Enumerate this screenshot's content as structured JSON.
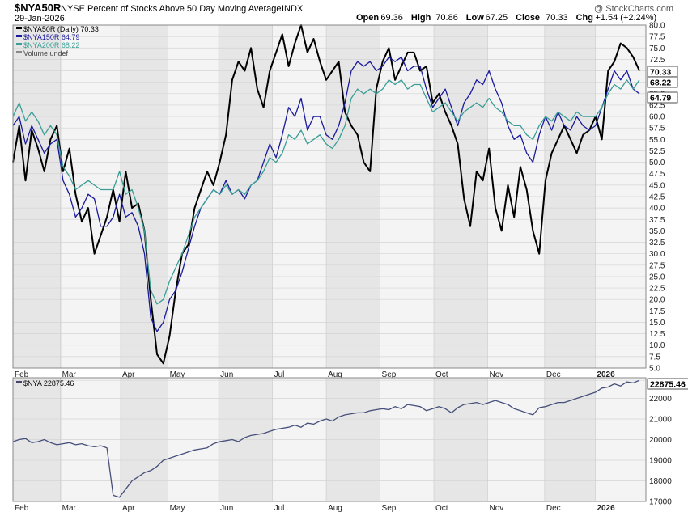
{
  "header": {
    "symbol": "$NYA50R",
    "description": "NYSE Percent of Stocks Above 50 Day Moving Average",
    "exchange": "INDX",
    "date": "29-Jan-2026",
    "watermark": "@ StockCharts.com",
    "ohlc": [
      {
        "label": "Open",
        "value": "69.36"
      },
      {
        "label": "High",
        "value": "70.86"
      },
      {
        "label": "Low",
        "value": "67.25"
      },
      {
        "label": "Close",
        "value": "70.33"
      },
      {
        "label": "Chg",
        "value": "+1.54 (+2.24%)"
      }
    ],
    "chg_arrow": "up-arrow-icon"
  },
  "legend_top": [
    {
      "label": "$NYA50R (Daily) 70.33",
      "color": "#000000"
    },
    {
      "label": "$NYA150R 64.79",
      "color": "#1a1a9c"
    },
    {
      "label": "$NYA200R 68.22",
      "color": "#3a9e96"
    },
    {
      "label": "Volume undef",
      "color": "#888888"
    }
  ],
  "legend_bottom": [
    {
      "label": "$NYA 22875.46",
      "color": "#444466"
    }
  ],
  "colors": {
    "nya50r": "#000000",
    "nya150r": "#1a1a9c",
    "nya200r": "#3a9e96",
    "nya": "#46507a",
    "shade": "#e6e6e6",
    "plot_bg": "#f4f4f4"
  },
  "chart_data": [
    {
      "type": "line",
      "y_ticks": [
        "80.0",
        "77.5",
        "75.0",
        "72.5",
        "70.0",
        "67.5",
        "65.0",
        "62.5",
        "60.0",
        "57.5",
        "55.0",
        "52.5",
        "50.0",
        "47.5",
        "45.0",
        "42.5",
        "40.0",
        "37.5",
        "35.0",
        "32.5",
        "30.0",
        "27.5",
        "25.0",
        "22.5",
        "20.0",
        "17.5",
        "15.0",
        "12.5",
        "10.0",
        "7.5",
        "5.0"
      ],
      "ylim": [
        5.0,
        80.0
      ],
      "x_labels": [
        "Feb",
        "Mar",
        "Apr",
        "May",
        "Jun",
        "Jul",
        "Aug",
        "Sep",
        "Oct",
        "Nov",
        "Dec",
        "2026"
      ],
      "last_value_tags": [
        {
          "label": "70.33",
          "series": "$NYA50R"
        },
        {
          "label": "68.22",
          "series": "$NYA200R"
        },
        {
          "label": "64.79",
          "series": "$NYA150R"
        }
      ],
      "series": [
        {
          "name": "$NYA50R",
          "values": [
            50,
            58,
            46,
            57,
            53,
            48,
            55,
            58,
            48,
            53,
            43,
            37,
            40,
            30,
            34,
            38,
            44,
            37,
            48,
            40,
            41,
            35,
            20,
            8,
            6,
            12,
            22,
            30,
            32,
            40,
            44,
            48,
            45,
            50,
            56,
            68,
            72,
            70,
            75,
            66,
            62,
            70,
            74,
            78,
            71,
            76,
            80,
            74,
            77,
            72,
            68,
            70,
            72,
            61,
            58,
            56,
            50,
            48,
            66,
            72,
            75,
            68,
            71,
            74,
            74,
            70,
            71,
            63,
            65,
            61,
            58,
            54,
            42,
            36,
            48,
            46,
            53,
            40,
            35,
            45,
            38,
            49,
            44,
            35,
            30,
            46,
            52,
            55,
            58,
            55,
            52,
            56,
            57,
            60,
            55,
            70,
            72,
            76,
            75,
            73,
            70
          ]
        },
        {
          "name": "$NYA150R",
          "values": [
            58,
            60,
            54,
            58,
            55,
            52,
            54,
            55,
            46,
            43,
            38,
            40,
            43,
            42,
            36,
            36,
            38,
            43,
            38,
            39,
            36,
            30,
            16,
            13,
            15,
            20,
            22,
            26,
            31,
            36,
            40,
            42,
            44,
            43,
            46,
            43,
            44,
            42,
            45,
            46,
            50,
            54,
            51,
            56,
            62,
            60,
            64,
            57,
            60,
            60,
            56,
            55,
            58,
            63,
            70,
            72,
            71,
            72,
            70,
            71,
            73,
            72,
            73,
            70,
            71,
            71,
            66,
            62,
            64,
            66,
            62,
            58,
            63,
            65,
            68,
            67,
            70,
            66,
            63,
            58,
            55,
            56,
            52,
            50,
            56,
            60,
            57,
            61,
            58,
            57,
            60,
            58,
            57,
            58,
            62,
            66,
            70,
            68,
            70,
            66,
            65
          ]
        },
        {
          "name": "$NYA200R",
          "values": [
            60,
            63,
            59,
            61,
            59,
            56,
            58,
            56,
            49,
            47,
            44,
            45,
            46,
            45,
            44,
            44,
            44,
            48,
            43,
            44,
            40,
            35,
            22,
            19,
            20,
            24,
            27,
            30,
            34,
            38,
            40,
            42,
            44,
            43,
            45,
            43,
            44,
            43,
            45,
            46,
            48,
            51,
            50,
            52,
            56,
            55,
            57,
            54,
            55,
            56,
            54,
            53,
            55,
            58,
            64,
            66,
            65,
            66,
            65,
            66,
            68,
            67,
            68,
            66,
            67,
            67,
            64,
            61,
            62,
            63,
            61,
            59,
            61,
            62,
            63,
            62,
            64,
            62,
            61,
            59,
            58,
            58,
            56,
            55,
            58,
            60,
            59,
            61,
            60,
            59,
            61,
            60,
            60,
            60,
            62,
            65,
            67,
            66,
            68,
            66,
            68
          ]
        }
      ]
    },
    {
      "type": "line",
      "y_ticks": [
        "22875.46",
        "22000",
        "21000",
        "20000",
        "19000",
        "18000",
        "17000"
      ],
      "ylim": [
        17000,
        23000
      ],
      "x_labels": [
        "Feb",
        "Mar",
        "Apr",
        "May",
        "Jun",
        "Jul",
        "Aug",
        "Sep",
        "Oct",
        "Nov",
        "Dec",
        "2026"
      ],
      "last_value_tags": [
        {
          "label": "22875.46",
          "series": "$NYA"
        }
      ],
      "series": [
        {
          "name": "$NYA",
          "values": [
            19900,
            20000,
            20050,
            19850,
            19900,
            20000,
            19850,
            19750,
            19800,
            19850,
            19750,
            19800,
            19700,
            19650,
            19700,
            19600,
            17300,
            17200,
            17600,
            18000,
            18200,
            18400,
            18500,
            18700,
            19000,
            19100,
            19200,
            19300,
            19400,
            19500,
            19550,
            19600,
            19800,
            19900,
            19950,
            20000,
            19900,
            20100,
            20200,
            20250,
            20300,
            20400,
            20500,
            20550,
            20600,
            20700,
            20600,
            20800,
            20750,
            20900,
            21000,
            20900,
            21100,
            21200,
            21250,
            21300,
            21300,
            21400,
            21450,
            21500,
            21450,
            21600,
            21500,
            21700,
            21650,
            21600,
            21400,
            21500,
            21600,
            21500,
            21300,
            21550,
            21700,
            21750,
            21800,
            21700,
            21800,
            21900,
            21800,
            21700,
            21500,
            21400,
            21300,
            21200,
            21550,
            21600,
            21700,
            21800,
            21800,
            21900,
            22000,
            22100,
            22200,
            22300,
            22500,
            22550,
            22700,
            22600,
            22800,
            22750,
            22875
          ]
        }
      ]
    }
  ]
}
